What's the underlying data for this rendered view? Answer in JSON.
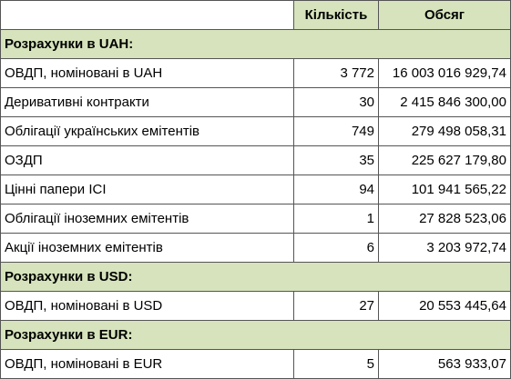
{
  "header": {
    "col_name": "",
    "col_count": "Кількість",
    "col_volume": "Обсяг"
  },
  "sections": [
    {
      "title": "Розрахунки в UAH:",
      "rows": [
        {
          "name": "ОВДП, номіновані в UAH",
          "count": "3 772",
          "volume": "16 003 016 929,74"
        },
        {
          "name": "Деривативні контракти",
          "count": "30",
          "volume": "2 415 846 300,00"
        },
        {
          "name": "Облігації українських емітентів",
          "count": "749",
          "volume": "279 498 058,31"
        },
        {
          "name": "ОЗДП",
          "count": "35",
          "volume": "225 627 179,80"
        },
        {
          "name": "Цінні папери ICI",
          "count": "94",
          "volume": "101 941 565,22"
        },
        {
          "name": "Облігації іноземних емітентів",
          "count": "1",
          "volume": "27 828 523,06"
        },
        {
          "name": "Акції іноземних емітентів",
          "count": "6",
          "volume": "3 203 972,74"
        }
      ]
    },
    {
      "title": "Розрахунки в USD:",
      "rows": [
        {
          "name": "ОВДП, номіновані в USD",
          "count": "27",
          "volume": "20 553 445,64"
        }
      ]
    },
    {
      "title": "Розрахунки в EUR:",
      "rows": [
        {
          "name": "ОВДП, номіновані в EUR",
          "count": "5",
          "volume": "563 933,07"
        }
      ]
    }
  ],
  "colors": {
    "header_bg": "#d6e3bc",
    "border": "#555555"
  }
}
